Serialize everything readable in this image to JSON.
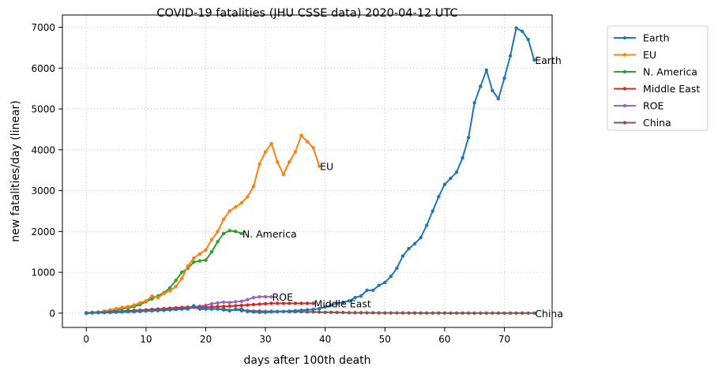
{
  "chart_data": {
    "type": "line",
    "title": "COVID-19 fatalities (JHU CSSE data) 2020-04-12 UTC",
    "xlabel": "days after 100th death",
    "ylabel": "new fatalities/day (linear)",
    "xlim": [
      -4,
      78
    ],
    "ylim": [
      -350,
      7300
    ],
    "xticks": [
      0,
      10,
      20,
      30,
      40,
      50,
      60,
      70
    ],
    "yticks": [
      0,
      1000,
      2000,
      3000,
      4000,
      5000,
      6000,
      7000
    ],
    "grid": true,
    "legend_position": "outside-top-right",
    "series": [
      {
        "name": "Earth",
        "color": "#1f77b4",
        "end_label": "Earth",
        "x": [
          0,
          1,
          2,
          3,
          4,
          5,
          6,
          7,
          8,
          9,
          10,
          11,
          12,
          13,
          14,
          15,
          16,
          17,
          18,
          19,
          20,
          21,
          22,
          23,
          24,
          25,
          26,
          27,
          28,
          29,
          30,
          31,
          32,
          33,
          34,
          35,
          36,
          37,
          38,
          39,
          40,
          41,
          42,
          43,
          44,
          45,
          46,
          47,
          48,
          49,
          50,
          51,
          52,
          53,
          54,
          55,
          56,
          57,
          58,
          59,
          60,
          61,
          62,
          63,
          64,
          65,
          66,
          67,
          68,
          69,
          70,
          71,
          72,
          73,
          74,
          75
        ],
        "values": [
          0,
          10,
          15,
          20,
          25,
          30,
          35,
          40,
          45,
          50,
          55,
          60,
          65,
          70,
          80,
          90,
          100,
          110,
          180,
          120,
          110,
          100,
          110,
          80,
          60,
          90,
          100,
          40,
          30,
          20,
          20,
          30,
          35,
          40,
          50,
          60,
          70,
          80,
          90,
          110,
          150,
          200,
          240,
          270,
          300,
          380,
          420,
          560,
          560,
          680,
          750,
          900,
          1100,
          1400,
          1580,
          1700,
          1850,
          2150,
          2500,
          2850,
          3150,
          3300,
          3450,
          3800,
          4300,
          5150,
          5550,
          5950,
          5450,
          5250,
          5750,
          6300,
          6980,
          6900,
          6700,
          6200
        ]
      },
      {
        "name": "EU",
        "color": "#ff7f0e",
        "end_label": "EU",
        "x": [
          0,
          1,
          2,
          3,
          4,
          5,
          6,
          7,
          8,
          9,
          10,
          11,
          12,
          13,
          14,
          15,
          16,
          17,
          18,
          19,
          20,
          21,
          22,
          23,
          24,
          25,
          26,
          27,
          28,
          29,
          30,
          31,
          32,
          33,
          34,
          35,
          36,
          37,
          38,
          39
        ],
        "values": [
          0,
          20,
          30,
          50,
          80,
          110,
          140,
          160,
          200,
          250,
          300,
          420,
          380,
          480,
          550,
          650,
          850,
          1150,
          1350,
          1450,
          1550,
          1800,
          2000,
          2300,
          2500,
          2600,
          2700,
          2850,
          3100,
          3650,
          3950,
          4150,
          3700,
          3400,
          3700,
          3950,
          4350,
          4200,
          4050,
          3600
        ]
      },
      {
        "name": "N. America",
        "color": "#2ca02c",
        "end_label": "N. America",
        "x": [
          0,
          1,
          2,
          3,
          4,
          5,
          6,
          7,
          8,
          9,
          10,
          11,
          12,
          13,
          14,
          15,
          16,
          17,
          18,
          19,
          20,
          21,
          22,
          23,
          24,
          25,
          26
        ],
        "values": [
          0,
          15,
          25,
          40,
          60,
          80,
          110,
          130,
          160,
          210,
          280,
          350,
          420,
          500,
          620,
          800,
          1000,
          1100,
          1250,
          1280,
          1300,
          1500,
          1750,
          1950,
          2020,
          2000,
          1950
        ]
      },
      {
        "name": "Middle East",
        "color": "#d62728",
        "end_label": "Middle East",
        "x": [
          0,
          1,
          2,
          3,
          4,
          5,
          6,
          7,
          8,
          9,
          10,
          11,
          12,
          13,
          14,
          15,
          16,
          17,
          18,
          19,
          20,
          21,
          22,
          23,
          24,
          25,
          26,
          27,
          28,
          29,
          30,
          31,
          32,
          33,
          34,
          35,
          36,
          37,
          38
        ],
        "values": [
          0,
          10,
          15,
          20,
          25,
          30,
          40,
          50,
          60,
          70,
          80,
          90,
          100,
          110,
          120,
          130,
          140,
          145,
          150,
          140,
          145,
          150,
          160,
          165,
          170,
          180,
          190,
          200,
          210,
          220,
          230,
          240,
          240,
          240,
          240,
          240,
          240,
          240,
          240
        ]
      },
      {
        "name": "ROE",
        "color": "#9467bd",
        "end_label": "ROE",
        "x": [
          0,
          1,
          2,
          3,
          4,
          5,
          6,
          7,
          8,
          9,
          10,
          11,
          12,
          13,
          14,
          15,
          16,
          17,
          18,
          19,
          20,
          21,
          22,
          23,
          24,
          25,
          26,
          27,
          28,
          29,
          30,
          31
        ],
        "values": [
          0,
          5,
          8,
          10,
          15,
          20,
          25,
          30,
          35,
          40,
          50,
          60,
          70,
          80,
          90,
          100,
          110,
          130,
          150,
          170,
          190,
          230,
          250,
          270,
          260,
          280,
          290,
          330,
          380,
          400,
          400,
          400
        ]
      },
      {
        "name": "China",
        "color": "#8c564b",
        "end_label": "China",
        "x": [
          0,
          1,
          2,
          3,
          4,
          5,
          6,
          7,
          8,
          9,
          10,
          11,
          12,
          13,
          14,
          15,
          16,
          17,
          18,
          19,
          20,
          21,
          22,
          23,
          24,
          25,
          26,
          27,
          28,
          29,
          30,
          31,
          32,
          33,
          34,
          35,
          36,
          37,
          38,
          39,
          40,
          41,
          42,
          43,
          44,
          45,
          46,
          47,
          48,
          49,
          50,
          51,
          52,
          53,
          54,
          55,
          56,
          57,
          58,
          59,
          60,
          61,
          62,
          63,
          64,
          65,
          66,
          67,
          68,
          69,
          70,
          71,
          72,
          73,
          74,
          75
        ],
        "values": [
          10,
          15,
          25,
          30,
          40,
          45,
          50,
          60,
          65,
          70,
          75,
          85,
          90,
          100,
          100,
          110,
          110,
          100,
          145,
          100,
          100,
          105,
          100,
          100,
          70,
          90,
          60,
          60,
          50,
          50,
          40,
          45,
          40,
          40,
          35,
          35,
          35,
          30,
          30,
          25,
          20,
          20,
          15,
          15,
          10,
          10,
          10,
          8,
          8,
          7,
          6,
          5,
          5,
          5,
          4,
          4,
          3,
          3,
          3,
          3,
          3,
          2,
          2,
          2,
          2,
          2,
          2,
          2,
          2,
          2,
          2,
          2,
          2,
          2,
          2,
          2
        ]
      }
    ]
  }
}
